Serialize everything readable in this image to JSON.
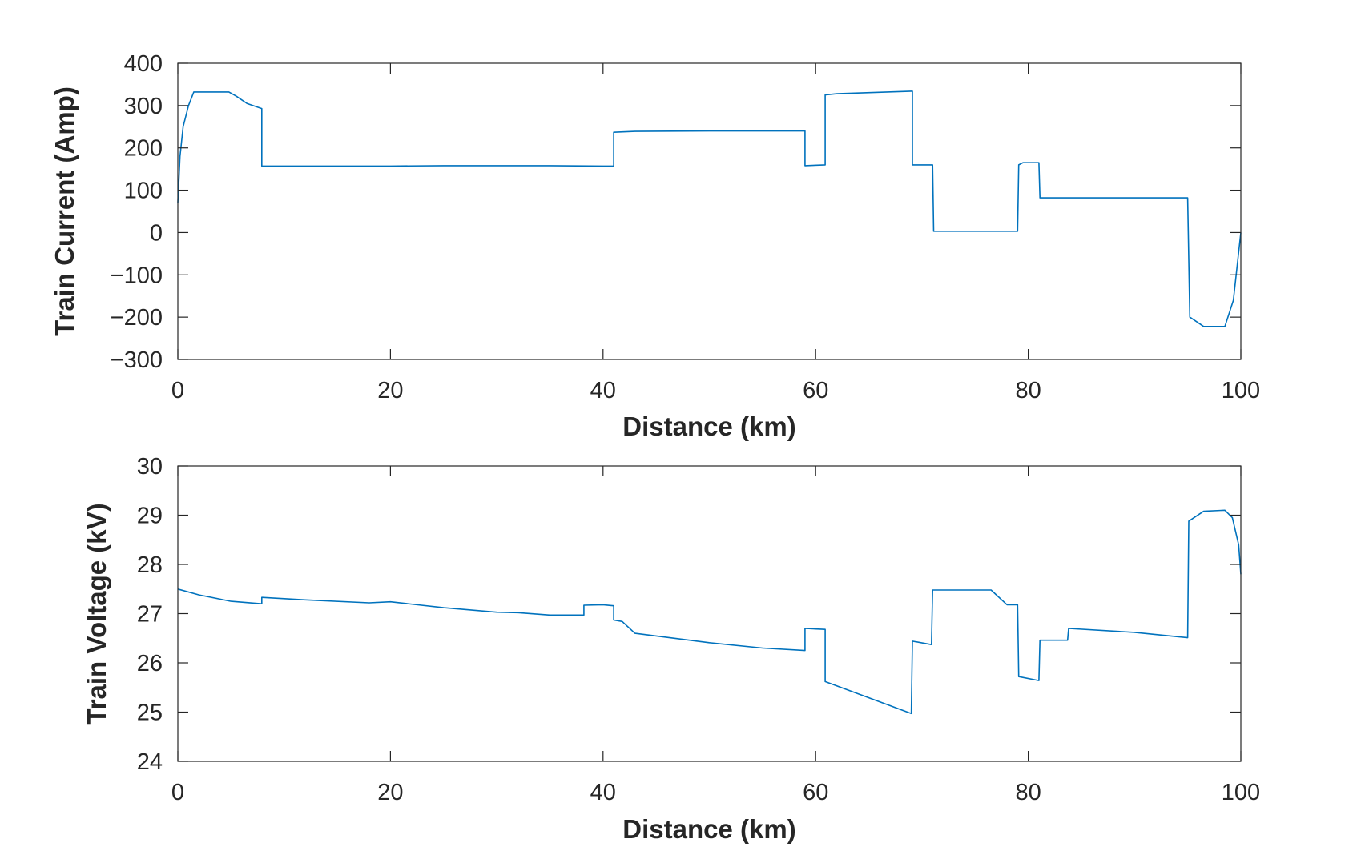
{
  "colors": {
    "series": "#0072bd",
    "axis": "#262626",
    "background": "#ffffff"
  },
  "chart_data": [
    {
      "type": "line",
      "title": "",
      "xlabel": "Distance (km)",
      "ylabel": "Train Current (Amp)",
      "xlim": [
        0,
        100
      ],
      "ylim": [
        -300,
        400
      ],
      "xticks": [
        0,
        20,
        40,
        60,
        80,
        100
      ],
      "yticks": [
        -300,
        -200,
        -100,
        0,
        100,
        200,
        300,
        400
      ],
      "xtick_labels": [
        "0",
        "20",
        "40",
        "60",
        "80",
        "100"
      ],
      "ytick_labels": [
        "−300",
        "−200",
        "−100",
        "0",
        "100",
        "200",
        "300",
        "400"
      ],
      "grid": false,
      "legend": "none",
      "series": [
        {
          "x": [
            0,
            0.2,
            0.5,
            1.0,
            1.5,
            2.0,
            4.8,
            5.5,
            6.5,
            7.9,
            7.9,
            20,
            25,
            35,
            40,
            41.0,
            41.0,
            43,
            50,
            59.0,
            59.0,
            60.9,
            60.9,
            62,
            69,
            69.1,
            69.1,
            71.0,
            71.1,
            79.0,
            79.1,
            79.5,
            81.0,
            81.1,
            95.0,
            95.2,
            96.5,
            98.5,
            99.3,
            100
          ],
          "y": [
            70,
            180,
            250,
            300,
            332,
            332,
            332,
            322,
            305,
            293,
            157,
            157,
            158,
            158,
            157,
            157,
            237,
            239,
            240,
            240,
            158,
            160,
            325,
            328,
            334,
            334,
            160,
            160,
            3,
            3,
            160,
            165,
            165,
            82,
            82,
            -200,
            -222,
            -222,
            -160,
            0
          ]
        }
      ]
    },
    {
      "type": "line",
      "title": "",
      "xlabel": "Distance (km)",
      "ylabel": "Train Voltage (kV)",
      "xlim": [
        0,
        100
      ],
      "ylim": [
        24,
        30
      ],
      "xticks": [
        0,
        20,
        40,
        60,
        80,
        100
      ],
      "yticks": [
        24,
        25,
        26,
        27,
        28,
        29,
        30
      ],
      "xtick_labels": [
        "0",
        "20",
        "40",
        "60",
        "80",
        "100"
      ],
      "ytick_labels": [
        "24",
        "25",
        "26",
        "27",
        "28",
        "29",
        "30"
      ],
      "grid": false,
      "legend": "none",
      "series": [
        {
          "x": [
            0,
            2,
            5,
            7.9,
            7.9,
            12,
            18,
            20,
            25,
            30,
            32,
            35,
            38.2,
            38.2,
            40,
            41.0,
            41.0,
            41.8,
            43,
            50,
            55,
            59.0,
            59.0,
            60.9,
            60.9,
            69.0,
            69.1,
            70.9,
            71.0,
            76.5,
            78.0,
            79.0,
            79.1,
            81.0,
            81.1,
            83.7,
            83.8,
            90,
            95.0,
            95.1,
            96.5,
            98.5,
            99.2,
            99.8,
            100
          ],
          "y": [
            27.5,
            27.38,
            27.25,
            27.2,
            27.33,
            27.28,
            27.22,
            27.24,
            27.12,
            27.03,
            27.02,
            26.97,
            26.97,
            27.17,
            27.18,
            27.16,
            26.87,
            26.84,
            26.6,
            26.41,
            26.3,
            26.25,
            26.7,
            26.68,
            25.62,
            24.97,
            26.44,
            26.37,
            27.48,
            27.48,
            27.18,
            27.18,
            25.72,
            25.64,
            26.46,
            26.46,
            26.7,
            26.62,
            26.51,
            28.88,
            29.08,
            29.1,
            28.95,
            28.4,
            27.8
          ]
        }
      ]
    }
  ]
}
